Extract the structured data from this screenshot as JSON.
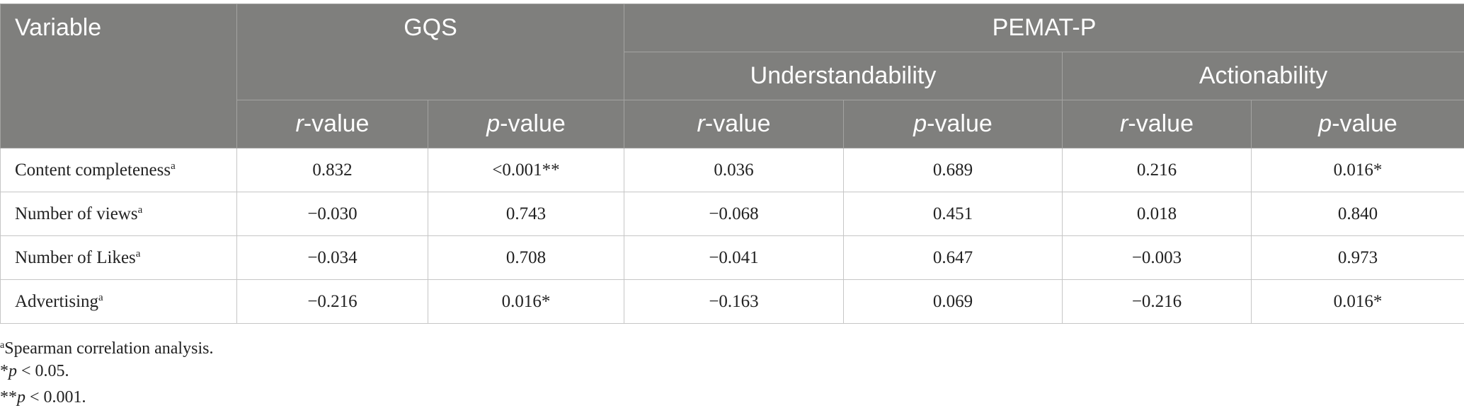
{
  "table": {
    "header": {
      "variable": "Variable",
      "gqs": "GQS",
      "pemat": "PEMAT-P",
      "understandability": "Understandability",
      "actionability": "Actionability",
      "columns": [
        {
          "italic": "r",
          "rest": "-value"
        },
        {
          "italic": "p",
          "rest": "-value"
        },
        {
          "italic": "r",
          "rest": "-value"
        },
        {
          "italic": "p",
          "rest": "-value"
        },
        {
          "italic": "r",
          "rest": "-value"
        },
        {
          "italic": "p",
          "rest": "-value"
        }
      ]
    },
    "rows": [
      {
        "label": "Content completeness",
        "note": "a",
        "cells": [
          "0.832",
          "<0.001**",
          "0.036",
          "0.689",
          "0.216",
          "0.016*"
        ]
      },
      {
        "label": "Number of views",
        "note": "a",
        "cells": [
          "−0.030",
          "0.743",
          "−0.068",
          "0.451",
          "0.018",
          "0.840"
        ]
      },
      {
        "label": "Number of Likes",
        "note": "a",
        "cells": [
          "−0.034",
          "0.708",
          "−0.041",
          "0.647",
          "−0.003",
          "0.973"
        ]
      },
      {
        "label": "Advertising",
        "note": "a",
        "cells": [
          "−0.216",
          "0.016*",
          "−0.163",
          "0.069",
          "−0.216",
          "0.016*"
        ]
      }
    ]
  },
  "footnotes": [
    {
      "mark": "a",
      "text": "Spearman correlation analysis."
    },
    {
      "mark": "*",
      "italic": "p",
      "text": " < 0.05."
    },
    {
      "mark": "**",
      "italic": "p",
      "text": " < 0.001."
    }
  ]
}
